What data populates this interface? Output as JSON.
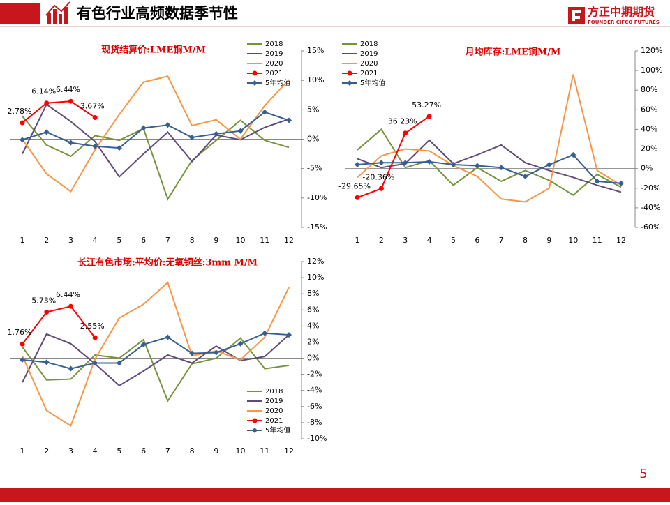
{
  "header": {
    "title": "有色行业高频数据季节性",
    "logo": "方正中期期货",
    "logo_en": "FOUNDER CIFCO FUTURES"
  },
  "page_number": "5",
  "chart_data": [
    {
      "type": "line",
      "title": "现货结算价:LME铜M/M",
      "categories": [
        "1",
        "2",
        "3",
        "4",
        "5",
        "6",
        "7",
        "8",
        "9",
        "10",
        "11",
        "12"
      ],
      "ylim": [
        -15,
        15
      ],
      "yticks": [
        {
          "value": -15,
          "label": "-15%"
        },
        {
          "value": -10,
          "label": "-10%"
        },
        {
          "value": -5,
          "label": "-5%"
        },
        {
          "value": 0,
          "label": "0%"
        },
        {
          "value": 5,
          "label": "5%"
        },
        {
          "value": 10,
          "label": "10%"
        },
        {
          "value": 15,
          "label": "15%"
        }
      ],
      "legend": "upper right",
      "series": [
        {
          "name": "2018",
          "color": "#77933c",
          "values": [
            3.9,
            -1,
            -2.9,
            0.6,
            -0.2,
            1.8,
            -10.2,
            -3.6,
            -0.2,
            3.2,
            -0.2,
            -1.4
          ]
        },
        {
          "name": "2019",
          "color": "#604a7b",
          "values": [
            -2.5,
            5.9,
            3,
            -0.4,
            -6.4,
            -2.5,
            1.2,
            -3.8,
            0.7,
            -0.1,
            2,
            3.4
          ]
        },
        {
          "name": "2020",
          "color": "#f79646",
          "values": [
            0,
            -5.9,
            -8.9,
            -1.8,
            4.2,
            9.7,
            10.7,
            2.3,
            3.3,
            0,
            5.7,
            10.1
          ]
        },
        {
          "name": "2021",
          "color": "#ff0000",
          "marker": "circle",
          "values": [
            2.78,
            6.14,
            6.44,
            3.67,
            null,
            null,
            null,
            null,
            null,
            null,
            null,
            null
          ],
          "value_labels": [
            "2.78%",
            "6.14%",
            "6.44%",
            "3.67%",
            null,
            null,
            null,
            null,
            null,
            null,
            null,
            null
          ]
        },
        {
          "name": "5年均值",
          "color": "#376092",
          "marker": "diamond",
          "values": [
            -0.1,
            1.2,
            -0.6,
            -1.2,
            -1.5,
            1.9,
            2.4,
            0.3,
            0.9,
            1.4,
            4.6,
            3.2
          ]
        }
      ]
    },
    {
      "type": "line",
      "title": "月均库存:LME铜M/M",
      "categories": [
        "1",
        "2",
        "3",
        "4",
        "5",
        "6",
        "7",
        "8",
        "9",
        "10",
        "11",
        "12"
      ],
      "ylim": [
        -60,
        120
      ],
      "yticks": [
        {
          "value": -60,
          "label": "-60%"
        },
        {
          "value": -40,
          "label": "-40%"
        },
        {
          "value": -20,
          "label": "-20%"
        },
        {
          "value": 0,
          "label": "0%"
        },
        {
          "value": 20,
          "label": "20%"
        },
        {
          "value": 40,
          "label": "40%"
        },
        {
          "value": 60,
          "label": "60%"
        },
        {
          "value": 80,
          "label": "80%"
        },
        {
          "value": 100,
          "label": "100%"
        },
        {
          "value": 120,
          "label": "120%"
        }
      ],
      "legend": "upper left",
      "series": [
        {
          "name": "2018",
          "color": "#77933c",
          "values": [
            19,
            40,
            1,
            8,
            -17,
            1,
            -13,
            -2,
            -12,
            -27,
            -6,
            -19
          ]
        },
        {
          "name": "2019",
          "color": "#604a7b",
          "values": [
            10,
            1,
            5,
            29,
            5,
            14,
            24,
            6,
            -2,
            -9,
            -17,
            -24
          ]
        },
        {
          "name": "2020",
          "color": "#f79646",
          "values": [
            -9,
            13,
            20,
            18,
            3,
            -8,
            -31,
            -34,
            -20,
            96,
            -2,
            -17
          ]
        },
        {
          "name": "2021",
          "color": "#ff0000",
          "marker": "circle",
          "values": [
            -29.65,
            -20.36,
            36.23,
            53.27,
            null,
            null,
            null,
            null,
            null,
            null,
            null,
            null
          ],
          "value_labels": [
            "-29.65%",
            "-20.36%",
            "36.23%",
            "53.27%",
            null,
            null,
            null,
            null,
            null,
            null,
            null,
            null
          ]
        },
        {
          "name": "5年均值",
          "color": "#376092",
          "marker": "diamond",
          "values": [
            4,
            6,
            6,
            7,
            4,
            3,
            1,
            -8,
            4,
            14,
            -13,
            -15
          ]
        }
      ]
    },
    {
      "type": "line",
      "title": "长江有色市场:平均价:无氧铜丝:3mm M/M",
      "categories": [
        "1",
        "2",
        "3",
        "4",
        "5",
        "6",
        "7",
        "8",
        "9",
        "10",
        "11",
        "12"
      ],
      "ylim": [
        -10,
        12
      ],
      "yticks": [
        {
          "value": -10,
          "label": "-10%"
        },
        {
          "value": -8,
          "label": "-8%"
        },
        {
          "value": -6,
          "label": "-6%"
        },
        {
          "value": -4,
          "label": "-4%"
        },
        {
          "value": -2,
          "label": "-2%"
        },
        {
          "value": 0,
          "label": "0%"
        },
        {
          "value": 2,
          "label": "2%"
        },
        {
          "value": 4,
          "label": "4%"
        },
        {
          "value": 6,
          "label": "6%"
        },
        {
          "value": 8,
          "label": "8%"
        },
        {
          "value": 10,
          "label": "10%"
        },
        {
          "value": 12,
          "label": "12%"
        }
      ],
      "legend": "lower right",
      "series": [
        {
          "name": "2018",
          "color": "#77933c",
          "values": [
            1.4,
            -2.7,
            -2.6,
            0.4,
            0,
            2.3,
            -5.3,
            -0.7,
            0,
            2.5,
            -1.3,
            -0.9
          ]
        },
        {
          "name": "2019",
          "color": "#604a7b",
          "values": [
            -3,
            3,
            1.8,
            -0.7,
            -3.4,
            -1.6,
            0.4,
            -0.6,
            1.5,
            -0.3,
            0.2,
            2.9
          ]
        },
        {
          "name": "2020",
          "color": "#f79646",
          "values": [
            0.3,
            -6.5,
            -8.4,
            -0.1,
            5,
            6.7,
            9.4,
            0.3,
            0.9,
            -0.2,
            2.6,
            8.8
          ]
        },
        {
          "name": "2021",
          "color": "#ff0000",
          "marker": "circle",
          "values": [
            1.76,
            5.73,
            6.44,
            2.55,
            null,
            null,
            null,
            null,
            null,
            null,
            null,
            null
          ],
          "value_labels": [
            "1.76%",
            "5.73%",
            "6.44%",
            "2.55%",
            null,
            null,
            null,
            null,
            null,
            null,
            null,
            null
          ]
        },
        {
          "name": "5年均值",
          "color": "#376092",
          "marker": "diamond",
          "values": [
            -0.2,
            -0.5,
            -1.3,
            -0.6,
            -0.6,
            1.7,
            2.6,
            0.6,
            0.7,
            1.8,
            3.1,
            2.9
          ]
        }
      ]
    }
  ]
}
